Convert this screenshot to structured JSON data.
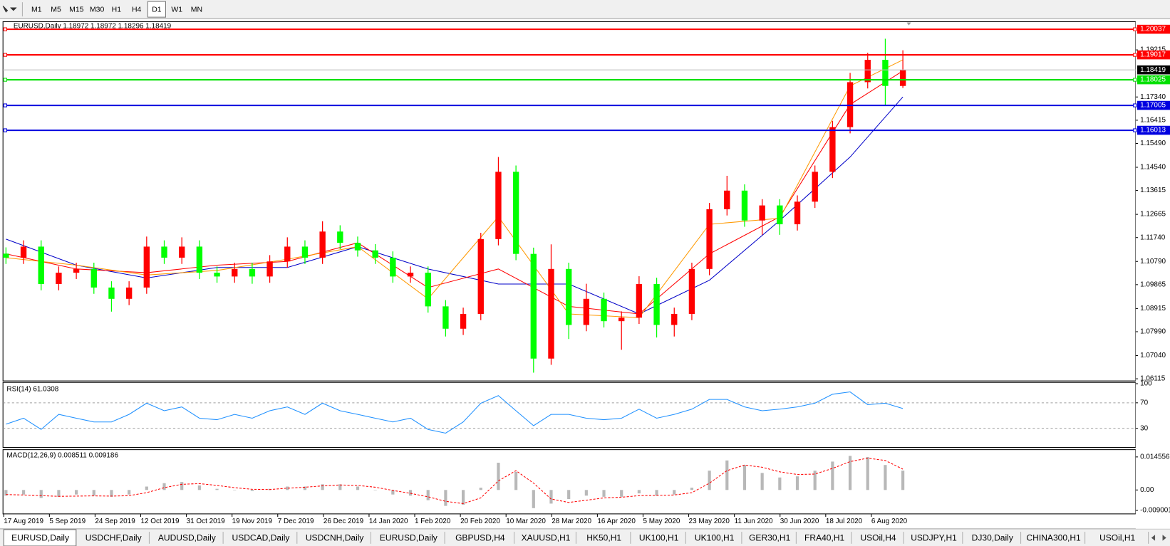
{
  "toolbar": {
    "timeframes": [
      "M1",
      "M5",
      "M15",
      "M30",
      "H1",
      "H4",
      "D1",
      "W1",
      "MN"
    ],
    "active_index": 6
  },
  "chart_data": [
    {
      "type": "candlestick",
      "title": "EURUSD,Daily  1.18972 1.18972 1.18296 1.18419",
      "x_labels": [
        "17 Aug 2019",
        "5 Sep 2019",
        "24 Sep 2019",
        "12 Oct 2019",
        "31 Oct 2019",
        "19 Nov 2019",
        "7 Dec 2019",
        "26 Dec 2019",
        "14 Jan 2020",
        "1 Feb 2020",
        "20 Feb 2020",
        "10 Mar 2020",
        "28 Mar 2020",
        "16 Apr 2020",
        "5 May 2020",
        "23 May 2020",
        "11 Jun 2020",
        "30 Jun 2020",
        "18 Jul 2020",
        "6 Aug 2020"
      ],
      "open": [
        1.111,
        1.1094,
        1.1138,
        1.0989,
        1.1034,
        1.1049,
        1.0975,
        1.093,
        1.0975,
        1.1138,
        1.1094,
        1.1138,
        1.1034,
        1.1019,
        1.1049,
        1.1019,
        1.1079,
        1.1138,
        1.1094,
        1.1198,
        1.1153,
        1.1123,
        1.1094,
        1.1019,
        1.1034,
        1.09,
        1.0811,
        1.087,
        1.1168,
        1.1436,
        1.1109,
        1.0692,
        1.1049,
        1.0826,
        1.093,
        1.0841,
        1.0855,
        1.0989,
        1.0826,
        1.087,
        1.1049,
        1.1287,
        1.1361,
        1.1242,
        1.1302,
        1.1227,
        1.1317,
        1.1436,
        1.1614,
        1.1793,
        1.1882,
        1.1778
      ],
      "high": [
        1.1135,
        1.1163,
        1.1163,
        1.1059,
        1.1074,
        1.1074,
        1.1,
        1.1,
        1.1178,
        1.1163,
        1.1175,
        1.1163,
        1.1059,
        1.1074,
        1.1074,
        1.1104,
        1.1175,
        1.1163,
        1.1239,
        1.1223,
        1.1178,
        1.1148,
        1.1119,
        1.1059,
        1.1059,
        1.0925,
        1.0895,
        1.1193,
        1.1495,
        1.1461,
        1.1134,
        1.1147,
        1.1074,
        1.099,
        1.0955,
        1.088,
        1.102,
        1.1014,
        1.0895,
        1.1074,
        1.1312,
        1.142,
        1.1386,
        1.1327,
        1.1327,
        1.1342,
        1.1461,
        1.1639,
        1.183,
        1.191,
        1.1966,
        1.192
      ],
      "low": [
        1.1069,
        1.1069,
        1.0964,
        1.0964,
        1.1009,
        1.095,
        1.0879,
        1.0905,
        1.095,
        1.1069,
        1.1069,
        1.1009,
        1.0994,
        1.0994,
        1.099,
        1.0994,
        1.1054,
        1.1069,
        1.1069,
        1.1128,
        1.1098,
        1.1069,
        1.0994,
        1.0994,
        1.0875,
        1.078,
        1.0786,
        1.0845,
        1.1143,
        1.1084,
        1.0636,
        1.0667,
        1.077,
        1.0801,
        1.0816,
        1.0727,
        1.083,
        1.0776,
        1.078,
        1.0845,
        1.1024,
        1.1262,
        1.1217,
        1.1185,
        1.1185,
        1.1202,
        1.1292,
        1.1411,
        1.1589,
        1.1768,
        1.17,
        1.177
      ],
      "close": [
        1.1094,
        1.1138,
        1.0989,
        1.1034,
        1.1049,
        1.0975,
        1.093,
        1.0975,
        1.1138,
        1.1094,
        1.1138,
        1.1034,
        1.1019,
        1.1049,
        1.1019,
        1.1079,
        1.1138,
        1.1094,
        1.1198,
        1.1153,
        1.1123,
        1.1094,
        1.1019,
        1.1034,
        1.09,
        1.0811,
        1.087,
        1.1168,
        1.1436,
        1.1109,
        1.0692,
        1.1049,
        1.0826,
        1.093,
        1.0841,
        1.0855,
        1.0989,
        1.0826,
        1.087,
        1.1049,
        1.1287,
        1.1361,
        1.1242,
        1.1302,
        1.1227,
        1.1317,
        1.1436,
        1.1614,
        1.1793,
        1.1882,
        1.1778,
        1.1842
      ],
      "up_color": "#ff0000",
      "down_color": "#00ff00",
      "ma_lines": [
        {
          "color": "#0000c8",
          "x": [
            0,
            4,
            8,
            12,
            16,
            20,
            24,
            28,
            32,
            36,
            40,
            44,
            48,
            51
          ],
          "values": [
            1.1168,
            1.1064,
            1.1013,
            1.1055,
            1.1055,
            1.1138,
            1.1049,
            1.0989,
            1.0989,
            1.087,
            1.1004,
            1.1242,
            1.1495,
            1.1734
          ]
        },
        {
          "color": "#ff0000",
          "x": [
            0,
            4,
            8,
            12,
            16,
            20,
            24,
            28,
            32,
            36,
            40,
            44,
            48,
            51
          ],
          "values": [
            1.1109,
            1.1049,
            1.1034,
            1.1064,
            1.1079,
            1.1153,
            1.0975,
            1.1049,
            1.09,
            1.087,
            1.1109,
            1.1257,
            1.1704,
            1.1838
          ]
        },
        {
          "color": "#ff9900",
          "x": [
            0,
            4,
            8,
            12,
            16,
            20,
            24,
            28,
            32,
            36,
            40,
            44,
            48,
            51
          ],
          "values": [
            1.1094,
            1.1064,
            1.1025,
            1.1043,
            1.1088,
            1.1138,
            1.093,
            1.1257,
            1.087,
            1.0855,
            1.1227,
            1.1251,
            1.1778,
            1.1882
          ]
        }
      ],
      "levels": [
        {
          "value": 1.20037,
          "color": "#ff0000"
        },
        {
          "value": 1.19017,
          "color": "#ff0000"
        },
        {
          "value": 1.18025,
          "color": "#00e000"
        },
        {
          "value": 1.17005,
          "color": "#0000e0"
        },
        {
          "value": 1.16013,
          "color": "#0000e0"
        }
      ],
      "current_price": 1.18419,
      "ylim": [
        1.0603,
        1.2034
      ],
      "yticks": [
        1.06115,
        {
          "value": 1.0704,
          "label": "1.07040"
        },
        {
          "value": 1.0799,
          "label": "1.07990"
        },
        1.08915,
        1.09865,
        {
          "value": 1.1079,
          "label": "1.10790"
        },
        {
          "value": 1.1174,
          "label": "1.11740"
        },
        1.12665,
        1.13615,
        {
          "value": 1.1454,
          "label": "1.14540"
        },
        {
          "value": 1.1549,
          "label": "1.15490"
        },
        1.16415,
        {
          "value": 1.1734,
          "label": "1.17340"
        },
        1.19215
      ]
    },
    {
      "type": "line",
      "title": "RSI(14) 61.0308",
      "values": [
        36.5,
        45.9,
        28.2,
        51.8,
        45.9,
        40,
        40,
        51.8,
        69.4,
        57.6,
        63.5,
        45.9,
        43.5,
        51.8,
        45.9,
        57.6,
        63.5,
        51.8,
        69.4,
        57.6,
        51.8,
        45.9,
        40,
        45.9,
        28.2,
        22.4,
        40,
        69.4,
        81.2,
        57.6,
        34.1,
        51.8,
        51.8,
        45.9,
        43.5,
        45.9,
        60,
        45.9,
        51.8,
        60,
        75.3,
        75.3,
        63.5,
        57.6,
        60,
        63.5,
        69.4,
        83.5,
        87.1,
        67.1,
        69.4,
        61.0308
      ],
      "color": "#1e90ff",
      "ylim": [
        0,
        102
      ],
      "yticks": [
        30,
        70,
        100
      ],
      "levels": [
        30,
        70
      ]
    },
    {
      "type": "macd",
      "title": "MACD(12,26,9) 0.008511 0.009186",
      "histogram": [
        -0.0025,
        -0.002,
        -0.0035,
        -0.003,
        -0.002,
        -0.0025,
        -0.003,
        -0.002,
        0.0015,
        0.003,
        0.0035,
        0.002,
        0.0005,
        0,
        -0.0005,
        0.0005,
        0.0015,
        0.0015,
        0.0025,
        0.0025,
        0.0015,
        0,
        -0.002,
        -0.0025,
        -0.0045,
        -0.007,
        -0.0065,
        0.001,
        0.012,
        0.008,
        -0.008,
        -0.006,
        -0.004,
        -0.0025,
        -0.003,
        -0.003,
        -0.0015,
        -0.0025,
        -0.002,
        0.001,
        0.0085,
        0.013,
        0.011,
        0.0075,
        0.0055,
        0.006,
        0.0085,
        0.0125,
        0.015,
        0.0145,
        0.011,
        0.008511
      ],
      "signal": [
        -0.002,
        -0.0022,
        -0.0025,
        -0.0028,
        -0.0027,
        -0.0026,
        -0.0027,
        -0.0025,
        -0.0012,
        0.001,
        0.0025,
        0.0028,
        0.002,
        0.001,
        0.0003,
        0.0002,
        0.0008,
        0.0012,
        0.0018,
        0.0022,
        0.002,
        0.0012,
        -0.0002,
        -0.0015,
        -0.003,
        -0.005,
        -0.006,
        -0.0035,
        0.004,
        0.0085,
        0.003,
        -0.004,
        -0.0055,
        -0.0045,
        -0.0035,
        -0.0032,
        -0.0025,
        -0.0024,
        -0.0022,
        -0.0012,
        0.003,
        0.0085,
        0.011,
        0.01,
        0.008,
        0.0068,
        0.007,
        0.0095,
        0.0125,
        0.014,
        0.013,
        0.009186
      ],
      "histogram_color": "#b8b8b8",
      "signal_color": "#ff0000",
      "ylim": [
        -0.01053,
        0.01776
      ],
      "yticks": [
        0.014556,
        {
          "value": 0,
          "label": "0.00"
        },
        -0.009001
      ]
    }
  ],
  "tabs": {
    "items": [
      "EURUSD,Daily",
      "USDCHF,Daily",
      "AUDUSD,Daily",
      "USDCAD,Daily",
      "USDCNH,Daily",
      "EURUSD,Daily",
      "GBPUSD,H4",
      "XAUUSD,H1",
      "HK50,H1",
      "UK100,H1",
      "UK100,H1",
      "GER30,H1",
      "FRA40,H1",
      "USOil,H4",
      "USDJPY,H1",
      "DJ30,Daily",
      "CHINA300,H1",
      "USOil,H1"
    ],
    "active_index": 0
  }
}
